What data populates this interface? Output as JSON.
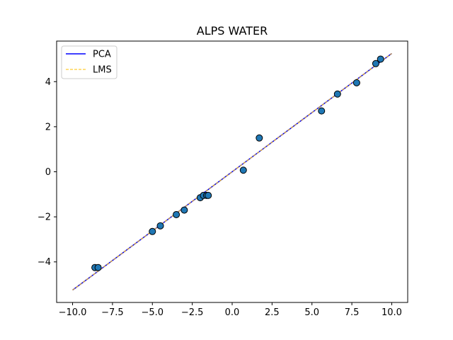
{
  "chart_data": {
    "type": "scatter",
    "title": "ALPS WATER",
    "xlabel": "",
    "ylabel": "",
    "xlim": [
      -11.0,
      11.0
    ],
    "ylim": [
      -5.8,
      5.8
    ],
    "xticks": [
      -10.0,
      -7.5,
      -5.0,
      -2.5,
      0.0,
      2.5,
      5.0,
      7.5,
      10.0
    ],
    "yticks": [
      -4,
      -2,
      0,
      2,
      4
    ],
    "grid": false,
    "legend_position": "upper-left",
    "points": {
      "x": [
        -8.6,
        -8.4,
        -5.0,
        -4.5,
        -3.5,
        -3.0,
        -2.0,
        -1.8,
        -1.6,
        -1.5,
        0.7,
        1.7,
        5.6,
        6.6,
        7.8,
        9.0,
        9.3
      ],
      "y": [
        -4.25,
        -4.25,
        -2.65,
        -2.4,
        -1.9,
        -1.7,
        -1.15,
        -1.05,
        -1.05,
        -1.05,
        0.07,
        1.5,
        2.7,
        3.45,
        3.95,
        4.8,
        5.0
      ],
      "color": "#1f77b4",
      "edgecolor": "#000000"
    },
    "series": [
      {
        "name": "PCA",
        "x": [
          -10.0,
          10.0
        ],
        "y": [
          -5.25,
          5.25
        ],
        "color": "#0000ff",
        "style": "solid"
      },
      {
        "name": "LMS",
        "x": [
          -10.0,
          10.0
        ],
        "y": [
          -5.25,
          5.25
        ],
        "color": "#ffbf00",
        "style": "dashed"
      }
    ]
  }
}
